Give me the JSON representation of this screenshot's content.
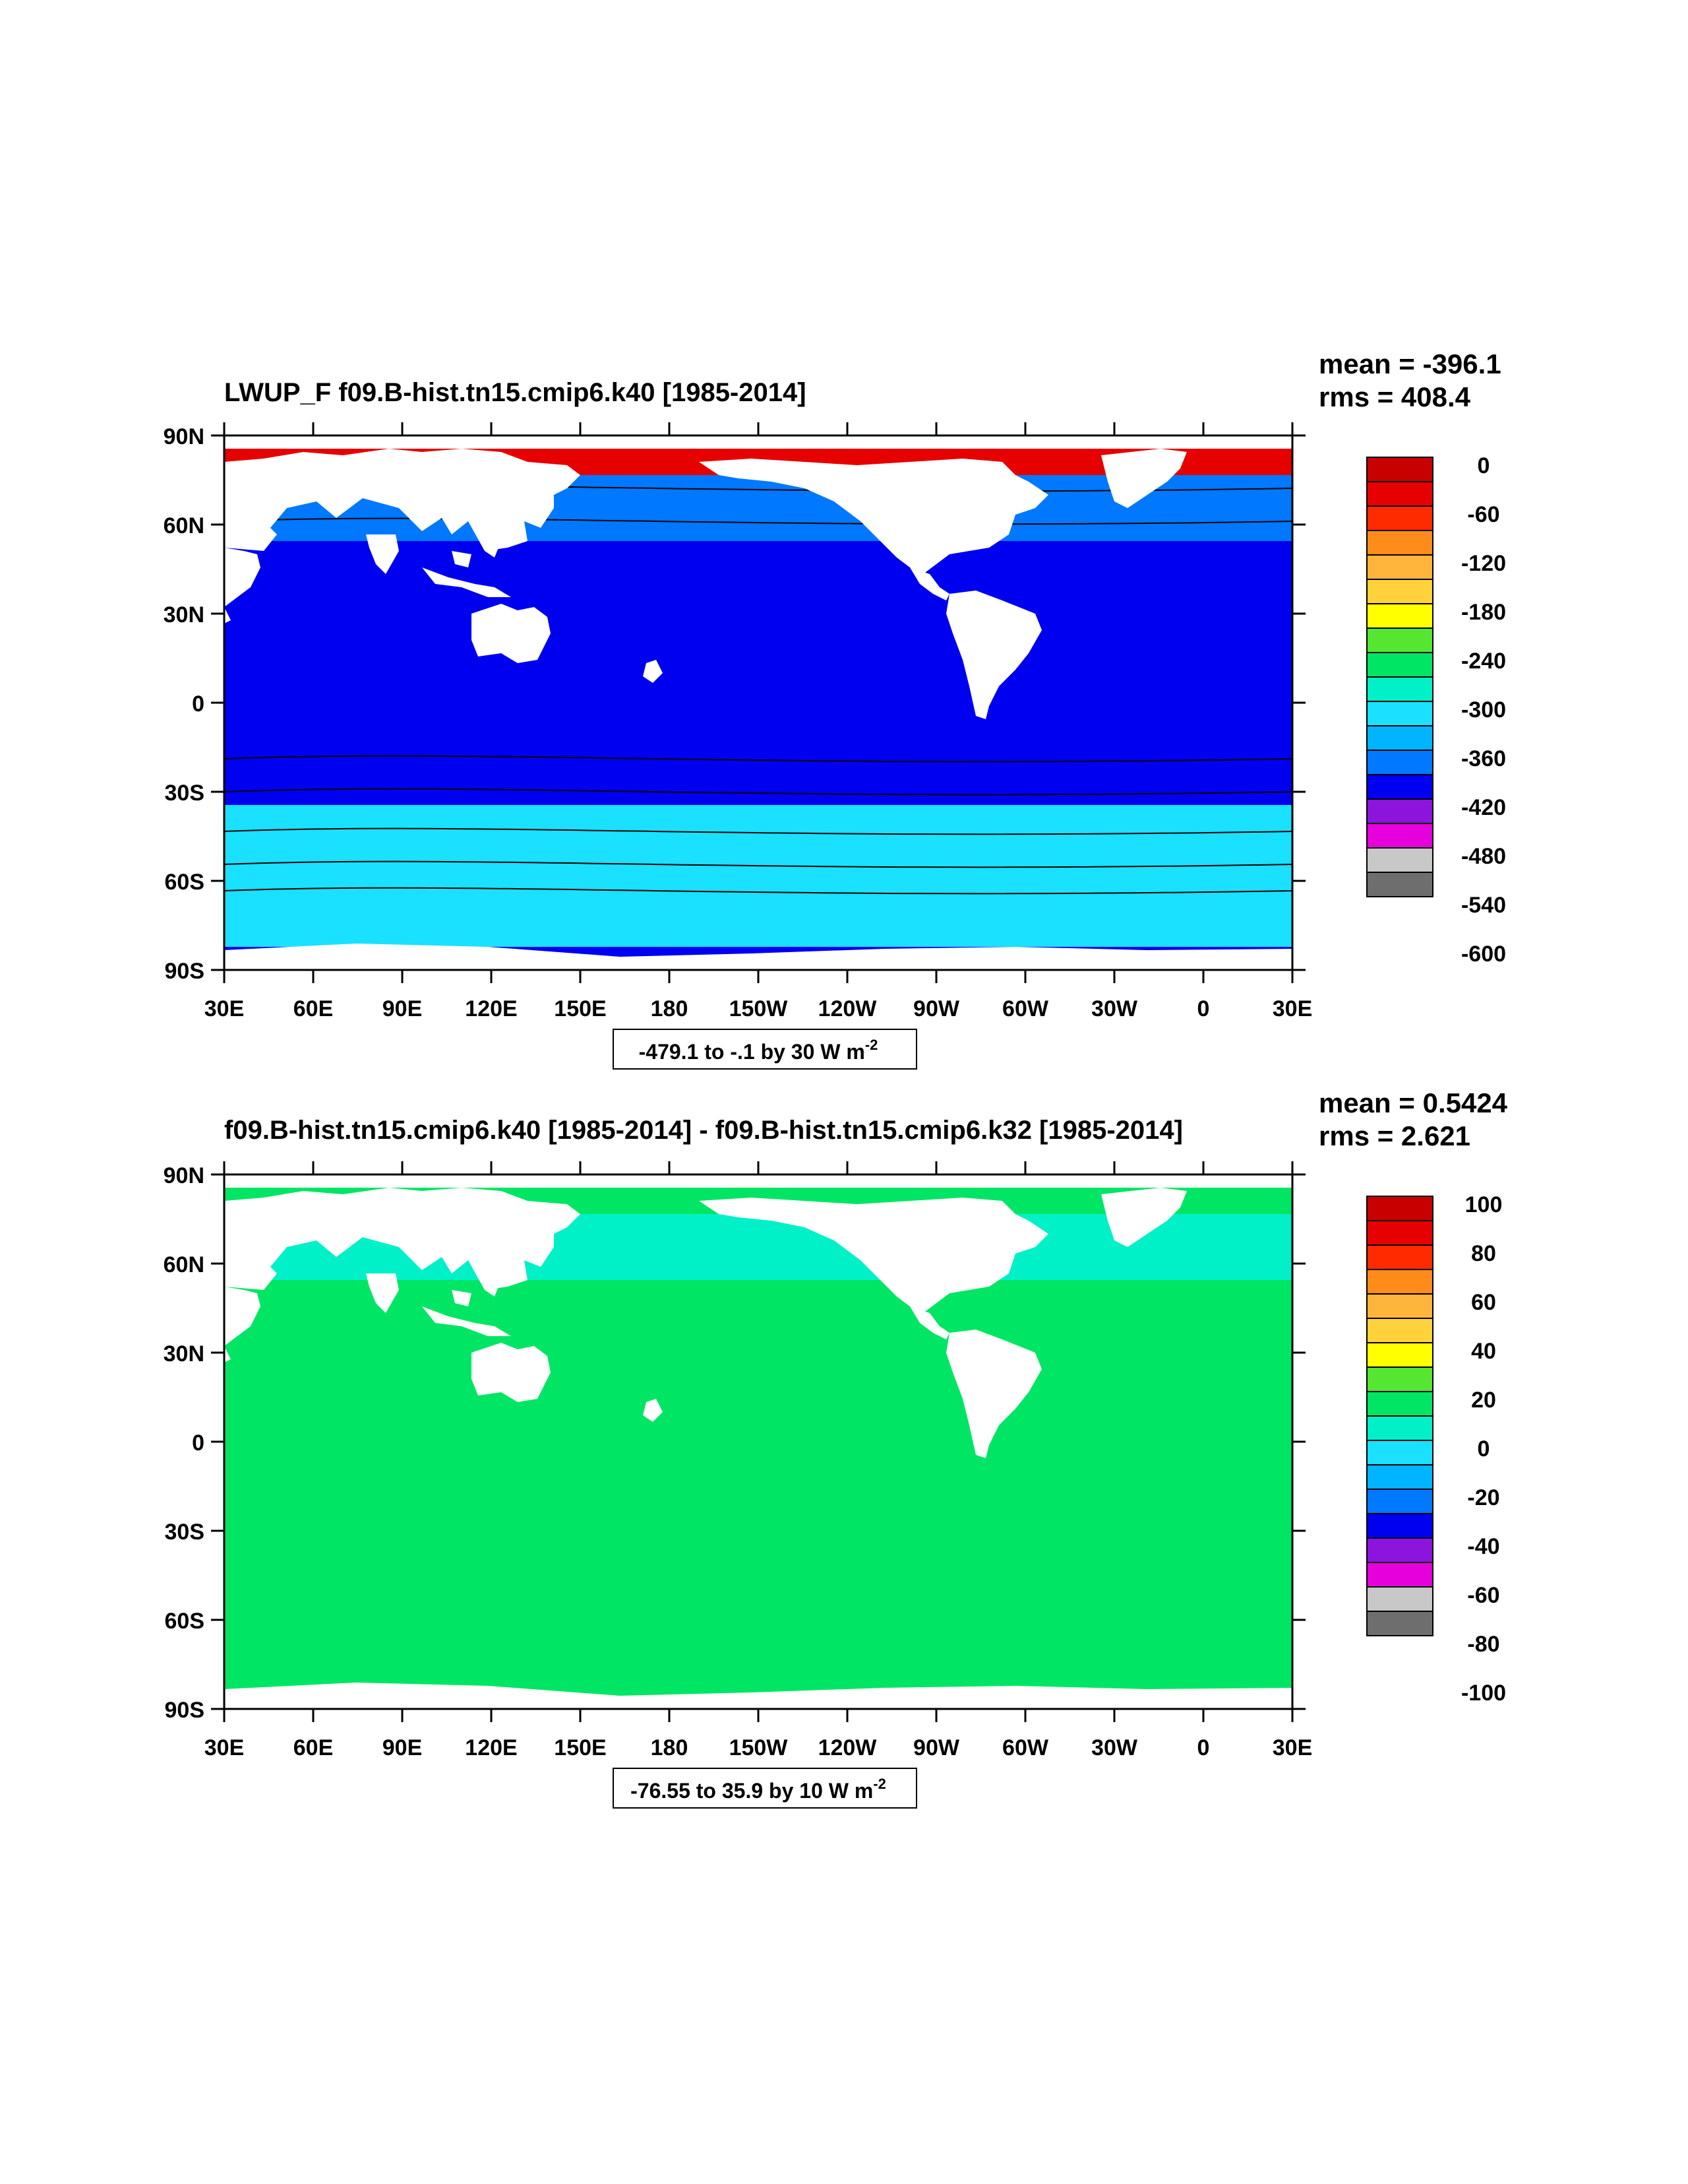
{
  "panels": [
    {
      "title": "LWUP_F f09.B-hist.tn15.cmip6.k40 [1985-2014]",
      "stats": {
        "mean": "mean = -396.1",
        "rms": "rms = 408.4"
      },
      "range_text": "-479.1 to -.1 by 30  W m",
      "range_sup": "-2",
      "lat_labels": [
        "90N",
        "60N",
        "30N",
        "0",
        "30S",
        "60S",
        "90S"
      ],
      "lon_labels": [
        "30E",
        "60E",
        "90E",
        "120E",
        "150E",
        "180",
        "150W",
        "120W",
        "90W",
        "60W",
        "30W",
        "0",
        "30E"
      ],
      "colorbar": {
        "labels": [
          "0",
          "-60",
          "-120",
          "-180",
          "-240",
          "-300",
          "-360",
          "-420",
          "-480",
          "-540",
          "-600"
        ],
        "colors": [
          "#c80000",
          "#e60000",
          "#ff2a00",
          "#ff8c1a",
          "#ffb43c",
          "#ffd23c",
          "#ffff00",
          "#55e632",
          "#00e664",
          "#00f0c8",
          "#19e1ff",
          "#00b4ff",
          "#0078ff",
          "#0000f0",
          "#8c14dc",
          "#e600dc",
          "#c8c8c8",
          "#6e6e6e"
        ]
      },
      "field": {
        "fill": "#0000f0",
        "band": "#0078ff",
        "polar_ocean": "#19e1ff",
        "ice": "#e60000"
      }
    },
    {
      "title": "f09.B-hist.tn15.cmip6.k40 [1985-2014] - f09.B-hist.tn15.cmip6.k32 [1985-2014]",
      "stats": {
        "mean": "mean = 0.5424",
        "rms": "rms = 2.621"
      },
      "range_text": "-76.55 to 35.9 by 10  W m",
      "range_sup": "-2",
      "lat_labels": [
        "90N",
        "60N",
        "30N",
        "0",
        "30S",
        "60S",
        "90S"
      ],
      "lon_labels": [
        "30E",
        "60E",
        "90E",
        "120E",
        "150E",
        "180",
        "150W",
        "120W",
        "90W",
        "60W",
        "30W",
        "0",
        "30E"
      ],
      "colorbar": {
        "labels": [
          "100",
          "80",
          "60",
          "40",
          "20",
          "0",
          "-20",
          "-40",
          "-60",
          "-80",
          "-100"
        ],
        "colors": [
          "#c80000",
          "#e60000",
          "#ff2a00",
          "#ff8c1a",
          "#ffb43c",
          "#ffd23c",
          "#ffff00",
          "#55e632",
          "#00e664",
          "#00f0c8",
          "#19e1ff",
          "#00b4ff",
          "#0078ff",
          "#0000f0",
          "#8c14dc",
          "#e600dc",
          "#c8c8c8",
          "#6e6e6e"
        ]
      },
      "field": {
        "fill": "#00e664",
        "band": "#00f0c8",
        "polar_ocean": "#00e664",
        "ice": "#00e664"
      }
    }
  ]
}
